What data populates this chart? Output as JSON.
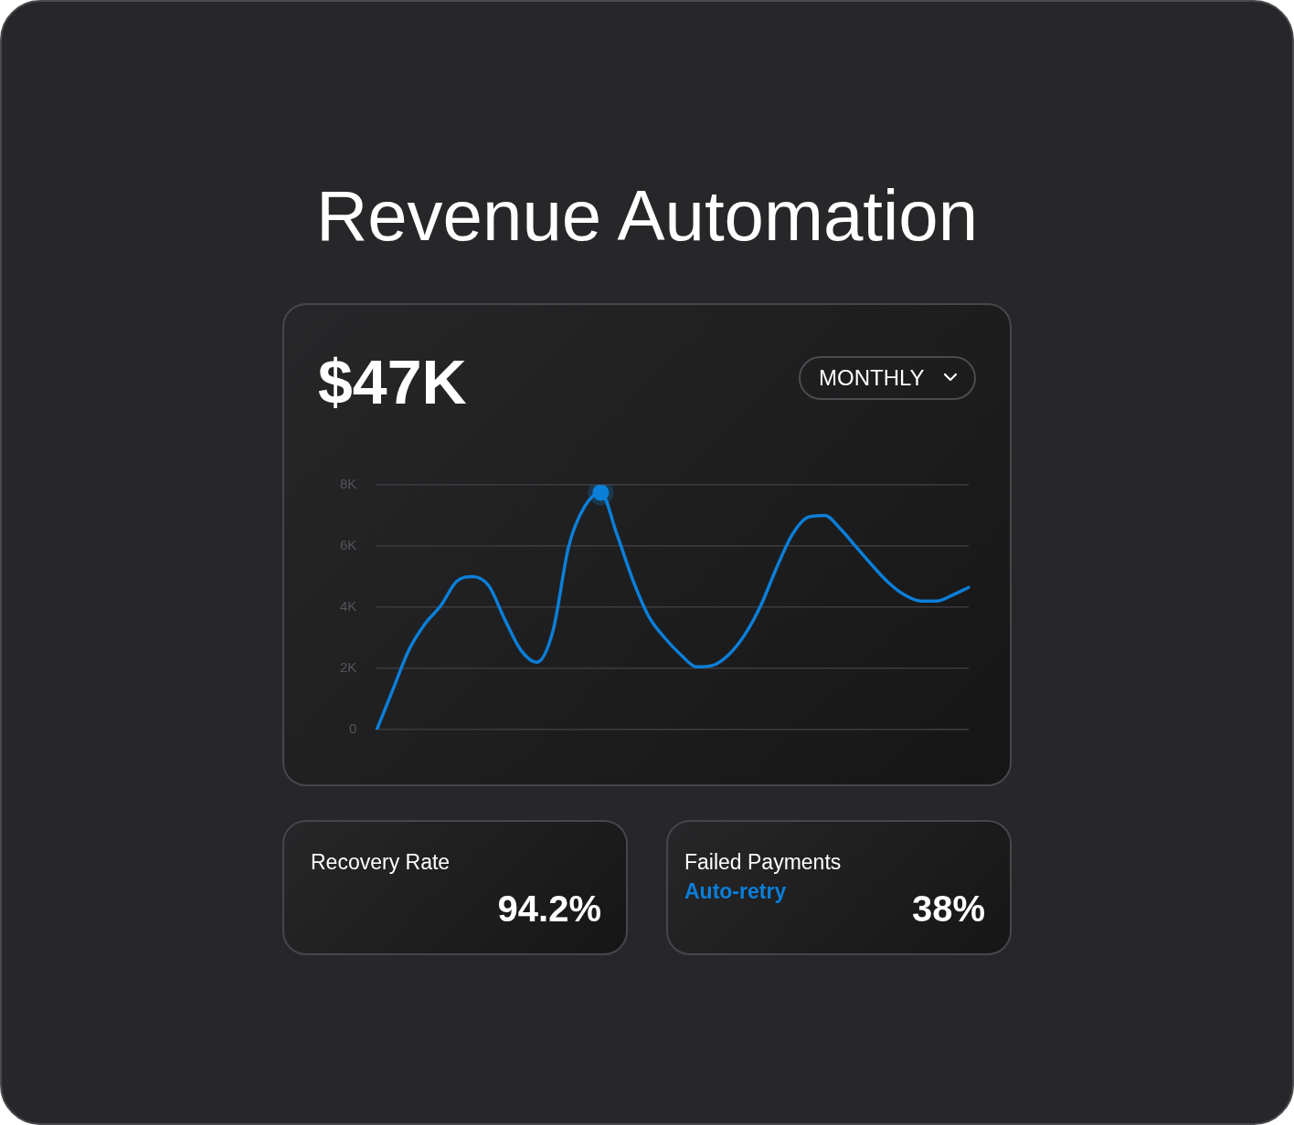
{
  "chart_data": {
    "type": "line",
    "title": "Revenue Automation",
    "annotations": [
      "$47K",
      "MONTHLY",
      "Recovery Rate",
      "94.2%",
      "Failed Payments",
      "Auto-retry",
      "38%"
    ],
    "categories": [
      null,
      null,
      null,
      null,
      null,
      null,
      null,
      null,
      null,
      null,
      null,
      null,
      null,
      null,
      null,
      null,
      null,
      null,
      null,
      null,
      null,
      null,
      null,
      null,
      null,
      null,
      null,
      null,
      null,
      null,
      null,
      null,
      null,
      null,
      null,
      null,
      null,
      null
    ],
    "series": [
      {
        "color": "#0b7fd9",
        "values": [
          0,
          1300,
          2600,
          3450,
          4050,
          4850,
          5000,
          4700,
          3600,
          2600,
          2200,
          3200,
          6000,
          7300,
          7750,
          6400,
          4900,
          3700,
          3000,
          2450,
          2050,
          2100,
          2450,
          3100,
          4050,
          5300,
          6400,
          6950,
          7000,
          6550,
          5950,
          5350,
          4800,
          4400,
          4200,
          4200,
          4400,
          4650
        ]
      },
      {
        "type": "scatter",
        "color": "#0b7fd9",
        "values": [
          null,
          null,
          null,
          null,
          null,
          null,
          null,
          null,
          null,
          null,
          null,
          null,
          null,
          null,
          7750,
          null,
          null,
          null,
          null,
          null,
          null,
          null,
          null,
          null,
          null,
          null,
          null,
          null,
          null,
          null,
          null,
          null,
          null,
          null,
          null,
          null,
          null,
          null
        ]
      }
    ],
    "ylim": [
      0,
      8000
    ],
    "yticks": [
      {
        "value": 0,
        "label": "0"
      },
      {
        "value": 2000,
        "label": "2K"
      },
      {
        "value": 4000,
        "label": "4K"
      },
      {
        "value": 6000,
        "label": "6K"
      },
      {
        "value": 8000,
        "label": "8K"
      }
    ],
    "grid": "y",
    "tick_labels": "y"
  }
}
